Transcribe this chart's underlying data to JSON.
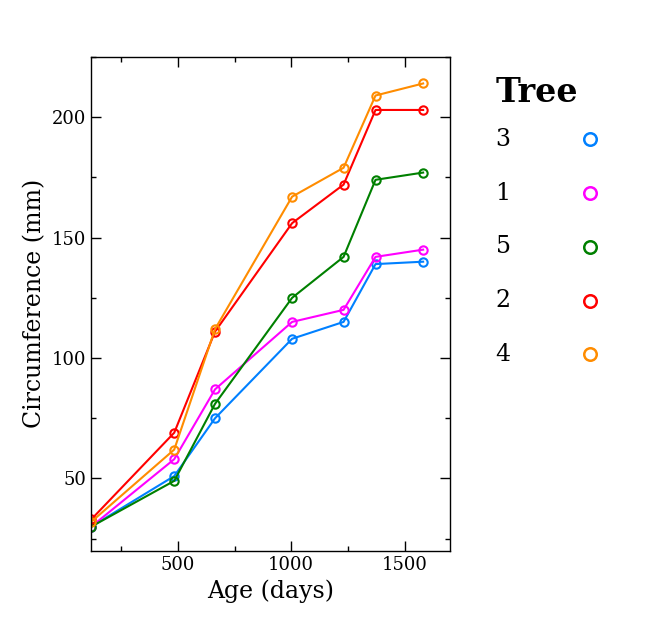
{
  "trees": {
    "3": {
      "color": "#0080FF",
      "age": [
        118,
        484,
        664,
        1004,
        1231,
        1372,
        1582
      ],
      "circumference": [
        30,
        51,
        75,
        108,
        115,
        139,
        140
      ]
    },
    "1": {
      "color": "#FF00FF",
      "age": [
        118,
        484,
        664,
        1004,
        1231,
        1372,
        1582
      ],
      "circumference": [
        30,
        58,
        87,
        115,
        120,
        142,
        145
      ]
    },
    "5": {
      "color": "#008000",
      "age": [
        118,
        484,
        664,
        1004,
        1231,
        1372,
        1582
      ],
      "circumference": [
        30,
        49,
        81,
        125,
        142,
        174,
        177
      ]
    },
    "2": {
      "color": "#FF0000",
      "age": [
        118,
        484,
        664,
        1004,
        1231,
        1372,
        1582
      ],
      "circumference": [
        33,
        69,
        111,
        156,
        172,
        203,
        203
      ]
    },
    "4": {
      "color": "#FF8C00",
      "age": [
        118,
        484,
        664,
        1004,
        1231,
        1372,
        1582
      ],
      "circumference": [
        32,
        62,
        112,
        167,
        179,
        209,
        214
      ]
    }
  },
  "legend_order": [
    "3",
    "1",
    "5",
    "2",
    "4"
  ],
  "xlabel": "Age (days)",
  "ylabel": "Circumference (mm)",
  "legend_title": "Tree",
  "xlim": [
    118,
    1700
  ],
  "ylim": [
    20,
    225
  ],
  "xticks": [
    500,
    1000,
    1500
  ],
  "yticks": [
    50,
    100,
    150,
    200
  ],
  "axis_label_fontsize": 17,
  "tick_fontsize": 13,
  "legend_title_fontsize": 24,
  "legend_fontsize": 17
}
